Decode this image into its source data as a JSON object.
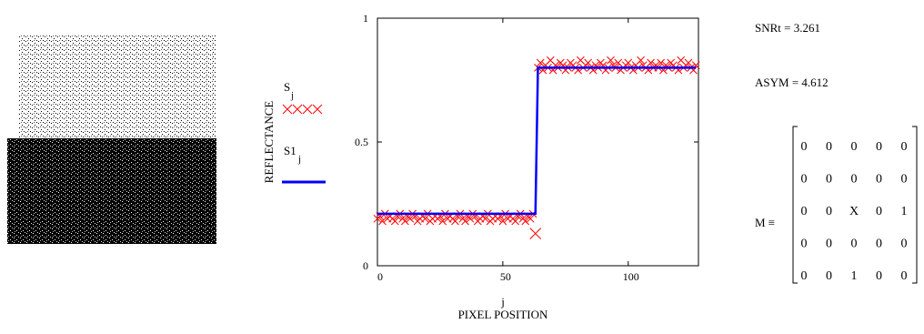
{
  "chart_data": {
    "type": "scatter-line",
    "y_label": "REFLECTANCE",
    "x_label_index": "j",
    "x_label": "PIXEL POSITION",
    "xlim": [
      0,
      128
    ],
    "xticks": [
      0,
      50,
      100
    ],
    "ylim": [
      0,
      1
    ],
    "yticks": [
      0,
      0.5,
      1
    ],
    "series": [
      {
        "name": "S",
        "subscript": "j",
        "color": "#ff0000",
        "style": "markers",
        "values": [
          0.19,
          0.2,
          0.18,
          0.21,
          0.19,
          0.2,
          0.19,
          0.18,
          0.2,
          0.21,
          0.19,
          0.18,
          0.2,
          0.19,
          0.21,
          0.2,
          0.18,
          0.19,
          0.2,
          0.19,
          0.21,
          0.18,
          0.19,
          0.2,
          0.19,
          0.2,
          0.18,
          0.21,
          0.19,
          0.2,
          0.19,
          0.18,
          0.2,
          0.21,
          0.19,
          0.18,
          0.2,
          0.19,
          0.21,
          0.2,
          0.18,
          0.19,
          0.2,
          0.19,
          0.21,
          0.18,
          0.19,
          0.2,
          0.19,
          0.2,
          0.18,
          0.21,
          0.19,
          0.2,
          0.19,
          0.18,
          0.2,
          0.21,
          0.19,
          0.18,
          0.2,
          0.19,
          0.21,
          0.13,
          0.8,
          0.82,
          0.79,
          0.81,
          0.8,
          0.83,
          0.79,
          0.81,
          0.8,
          0.82,
          0.81,
          0.79,
          0.8,
          0.82,
          0.81,
          0.8,
          0.79,
          0.83,
          0.8,
          0.81,
          0.82,
          0.8,
          0.79,
          0.81,
          0.8,
          0.82,
          0.81,
          0.79,
          0.8,
          0.83,
          0.81,
          0.8,
          0.82,
          0.79,
          0.8,
          0.81,
          0.82,
          0.8,
          0.79,
          0.81,
          0.8,
          0.83,
          0.81,
          0.8,
          0.79,
          0.82,
          0.8,
          0.81,
          0.8,
          0.82,
          0.79,
          0.81,
          0.8,
          0.82,
          0.81,
          0.8,
          0.79,
          0.83,
          0.8,
          0.81,
          0.82,
          0.8,
          0.79,
          0.81
        ]
      },
      {
        "name": "S1",
        "subscript": "j",
        "color": "#0000ff",
        "style": "line",
        "values": [
          0.21,
          0.21,
          0.21,
          0.21,
          0.21,
          0.21,
          0.21,
          0.21,
          0.21,
          0.21,
          0.21,
          0.21,
          0.21,
          0.21,
          0.21,
          0.21,
          0.21,
          0.21,
          0.21,
          0.21,
          0.21,
          0.21,
          0.21,
          0.21,
          0.21,
          0.21,
          0.21,
          0.21,
          0.21,
          0.21,
          0.21,
          0.21,
          0.21,
          0.21,
          0.21,
          0.21,
          0.21,
          0.21,
          0.21,
          0.21,
          0.21,
          0.21,
          0.21,
          0.21,
          0.21,
          0.21,
          0.21,
          0.21,
          0.21,
          0.21,
          0.21,
          0.21,
          0.21,
          0.21,
          0.21,
          0.21,
          0.21,
          0.21,
          0.21,
          0.21,
          0.21,
          0.21,
          0.21,
          0.21,
          0.8,
          0.8,
          0.8,
          0.8,
          0.8,
          0.8,
          0.8,
          0.8,
          0.8,
          0.8,
          0.8,
          0.8,
          0.8,
          0.8,
          0.8,
          0.8,
          0.8,
          0.8,
          0.8,
          0.8,
          0.8,
          0.8,
          0.8,
          0.8,
          0.8,
          0.8,
          0.8,
          0.8,
          0.8,
          0.8,
          0.8,
          0.8,
          0.8,
          0.8,
          0.8,
          0.8,
          0.8,
          0.8,
          0.8,
          0.8,
          0.8,
          0.8,
          0.8,
          0.8,
          0.8,
          0.8,
          0.8,
          0.8,
          0.8,
          0.8,
          0.8,
          0.8,
          0.8,
          0.8,
          0.8,
          0.8,
          0.8,
          0.8,
          0.8,
          0.8,
          0.8,
          0.8,
          0.8,
          0.8
        ]
      }
    ]
  },
  "results": {
    "snr": "SNRt = 3.261",
    "asym": "ASYM = 4.612",
    "matrix_label": "M ≡",
    "matrix": [
      [
        0,
        0,
        0,
        0,
        0
      ],
      [
        0,
        0,
        0,
        0,
        0
      ],
      [
        0,
        0,
        "X",
        0,
        1
      ],
      [
        0,
        0,
        0,
        0,
        0
      ],
      [
        0,
        0,
        1,
        0,
        0
      ]
    ]
  }
}
